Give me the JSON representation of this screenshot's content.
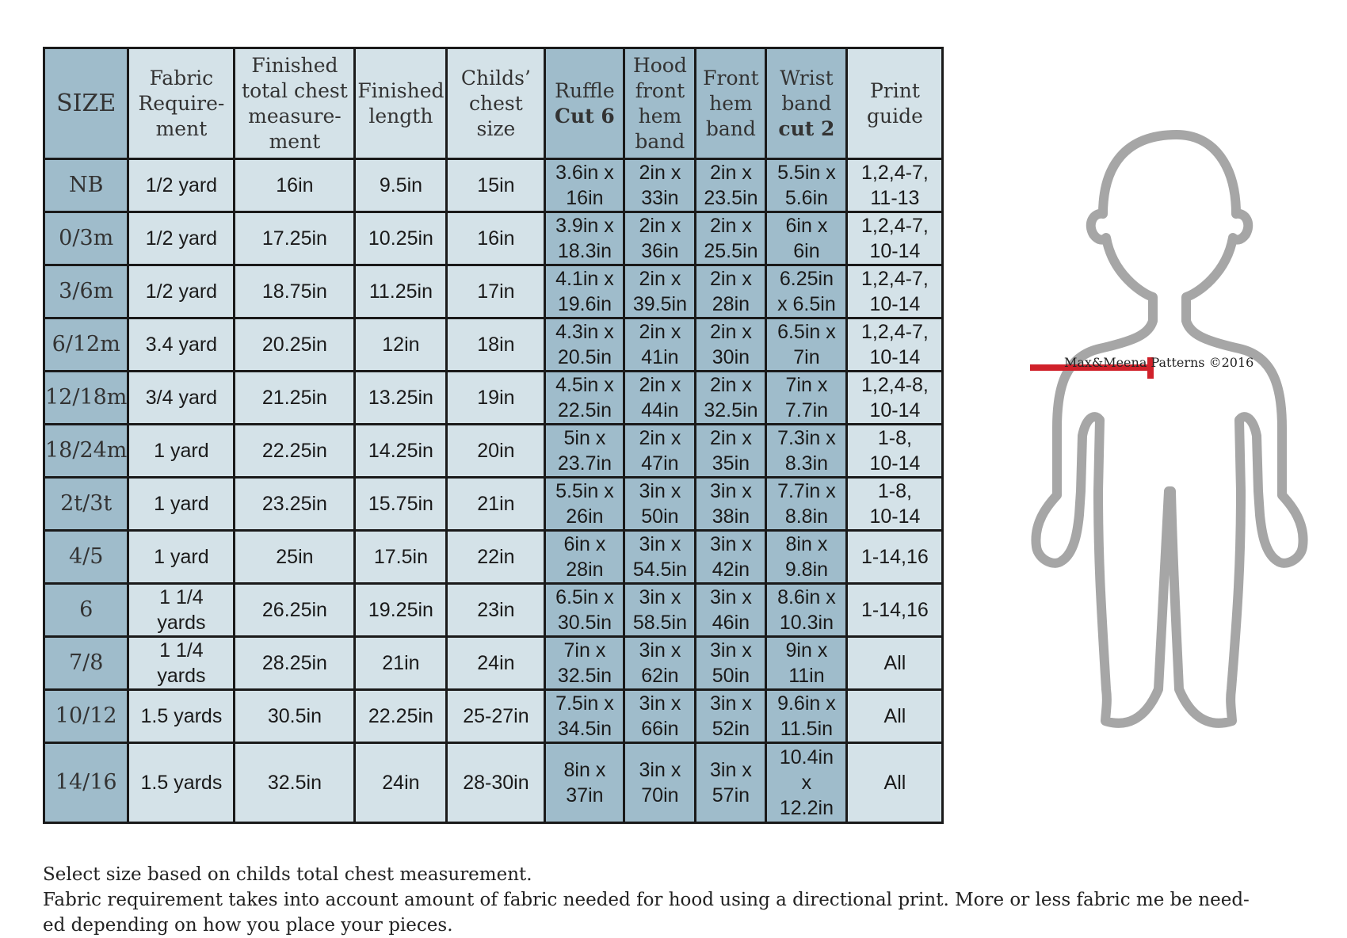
{
  "headers": [
    {
      "lines": [
        "SIZE"
      ],
      "dark": true
    },
    {
      "lines": [
        "Fabric",
        "Require-",
        "ment"
      ],
      "dark": false
    },
    {
      "lines": [
        "Finished",
        "total chest",
        "measure-",
        "ment"
      ],
      "dark": false
    },
    {
      "lines": [
        "Finished",
        "length"
      ],
      "dark": false
    },
    {
      "lines": [
        "Childs’",
        "chest size"
      ],
      "dark": false
    },
    {
      "lines": [
        "Ruffle",
        "Cut 6"
      ],
      "bold_last": true,
      "dark": true
    },
    {
      "lines": [
        "Hood",
        "front",
        "hem",
        "band"
      ],
      "dark": true
    },
    {
      "lines": [
        "Front",
        "hem",
        "band"
      ],
      "dark": true
    },
    {
      "lines": [
        "Wrist",
        "band",
        "cut 2"
      ],
      "bold_last": true,
      "dark": true
    },
    {
      "lines": [
        "Print",
        "guide"
      ],
      "dark": false
    }
  ],
  "rows": [
    {
      "size": "NB",
      "fabric": [
        "1/2 yard"
      ],
      "chest": "16in",
      "length": "9.5in",
      "child_chest": "15in",
      "ruffle": [
        "3.6in x",
        "16in"
      ],
      "hood_band": [
        "2in x",
        "33in"
      ],
      "front_band": [
        "2in x",
        "23.5in"
      ],
      "wrist_band": [
        "5.5in x",
        "5.6in"
      ],
      "print_guide": [
        "1,2,4-7,",
        "11-13"
      ]
    },
    {
      "size": "0/3m",
      "fabric": [
        "1/2 yard"
      ],
      "chest": "17.25in",
      "length": "10.25in",
      "child_chest": "16in",
      "ruffle": [
        "3.9in x",
        "18.3in"
      ],
      "hood_band": [
        "2in x",
        "36in"
      ],
      "front_band": [
        "2in x",
        "25.5in"
      ],
      "wrist_band": [
        "6in x",
        "6in"
      ],
      "print_guide": [
        "1,2,4-7,",
        "10-14"
      ]
    },
    {
      "size": "3/6m",
      "fabric": [
        "1/2 yard"
      ],
      "chest": "18.75in",
      "length": "11.25in",
      "child_chest": "17in",
      "ruffle": [
        "4.1in x",
        "19.6in"
      ],
      "hood_band": [
        "2in x",
        "39.5in"
      ],
      "front_band": [
        "2in x",
        "28in"
      ],
      "wrist_band": [
        "6.25in",
        "x 6.5in"
      ],
      "print_guide": [
        "1,2,4-7,",
        "10-14"
      ]
    },
    {
      "size": "6/12m",
      "fabric": [
        "3.4 yard"
      ],
      "chest": "20.25in",
      "length": "12in",
      "child_chest": "18in",
      "ruffle": [
        "4.3in x",
        "20.5in"
      ],
      "hood_band": [
        "2in x",
        "41in"
      ],
      "front_band": [
        "2in x",
        "30in"
      ],
      "wrist_band": [
        "6.5in x",
        "7in"
      ],
      "print_guide": [
        "1,2,4-7,",
        "10-14"
      ]
    },
    {
      "size": "12/18m",
      "fabric": [
        "3/4 yard"
      ],
      "chest": "21.25in",
      "length": "13.25in",
      "child_chest": "19in",
      "ruffle": [
        "4.5in x",
        "22.5in"
      ],
      "hood_band": [
        "2in x",
        "44in"
      ],
      "front_band": [
        "2in x",
        "32.5in"
      ],
      "wrist_band": [
        "7in x",
        "7.7in"
      ],
      "print_guide": [
        "1,2,4-8,",
        "10-14"
      ]
    },
    {
      "size": "18/24m",
      "fabric": [
        "1 yard"
      ],
      "chest": "22.25in",
      "length": "14.25in",
      "child_chest": "20in",
      "ruffle": [
        "5in x",
        "23.7in"
      ],
      "hood_band": [
        "2in x",
        "47in"
      ],
      "front_band": [
        "2in x",
        "35in"
      ],
      "wrist_band": [
        "7.3in x",
        "8.3in"
      ],
      "print_guide": [
        "1-8,",
        "10-14"
      ]
    },
    {
      "size": "2t/3t",
      "fabric": [
        "1 yard"
      ],
      "chest": "23.25in",
      "length": "15.75in",
      "child_chest": "21in",
      "ruffle": [
        "5.5in x",
        "26in"
      ],
      "hood_band": [
        "3in x",
        "50in"
      ],
      "front_band": [
        "3in x",
        "38in"
      ],
      "wrist_band": [
        "7.7in x",
        "8.8in"
      ],
      "print_guide": [
        "1-8,",
        "10-14"
      ]
    },
    {
      "size": "4/5",
      "fabric": [
        "1 yard"
      ],
      "chest": "25in",
      "length": "17.5in",
      "child_chest": "22in",
      "ruffle": [
        "6in x",
        "28in"
      ],
      "hood_band": [
        "3in x",
        "54.5in"
      ],
      "front_band": [
        "3in x",
        "42in"
      ],
      "wrist_band": [
        "8in x",
        "9.8in"
      ],
      "print_guide": [
        "1-14,16"
      ]
    },
    {
      "size": "6",
      "fabric": [
        "1 1/4",
        "yards"
      ],
      "chest": "26.25in",
      "length": "19.25in",
      "child_chest": "23in",
      "ruffle": [
        "6.5in x",
        "30.5in"
      ],
      "hood_band": [
        "3in x",
        "58.5in"
      ],
      "front_band": [
        "3in x",
        "46in"
      ],
      "wrist_band": [
        "8.6in x",
        "10.3in"
      ],
      "print_guide": [
        "1-14,16"
      ]
    },
    {
      "size": "7/8",
      "fabric": [
        "1 1/4",
        "yards"
      ],
      "chest": "28.25in",
      "length": "21in",
      "child_chest": "24in",
      "ruffle": [
        "7in x",
        "32.5in"
      ],
      "hood_band": [
        "3in x",
        "62in"
      ],
      "front_band": [
        "3in x",
        "50in"
      ],
      "wrist_band": [
        "9in x",
        "11in"
      ],
      "print_guide": [
        "All"
      ]
    },
    {
      "size": "10/12",
      "fabric": [
        "1.5 yards"
      ],
      "chest": "30.5in",
      "length": "22.25in",
      "child_chest": "25-27in",
      "ruffle": [
        "7.5in x",
        "34.5in"
      ],
      "hood_band": [
        "3in x",
        "66in"
      ],
      "front_band": [
        "3in x",
        "52in"
      ],
      "wrist_band": [
        "9.6in x",
        "11.5in"
      ],
      "print_guide": [
        "All"
      ]
    },
    {
      "size": "14/16",
      "fabric": [
        "1.5 yards"
      ],
      "chest": "32.5in",
      "length": "24in",
      "child_chest": "28-30in",
      "ruffle": [
        "8in x",
        "37in"
      ],
      "hood_band": [
        "3in x",
        "70in"
      ],
      "front_band": [
        "3in x",
        "57in"
      ],
      "wrist_band": [
        "10.4in",
        "x",
        "12.2in"
      ],
      "print_guide": [
        "All"
      ]
    }
  ],
  "notes": {
    "line1": "Select size based on childs total chest measurement.",
    "line2": "Fabric requirement takes into account amount of fabric needed for hood using a directional print. More or less fabric me be need-",
    "line3": "ed depending on how you place your pieces."
  },
  "watermark": "Max&Meena Patterns ©2016",
  "colors": {
    "light_cell": "#d4e2e8",
    "dark_cell": "#9fbccb",
    "measure_line": "#d0212a",
    "figure_outline": "#a6a6a6"
  }
}
